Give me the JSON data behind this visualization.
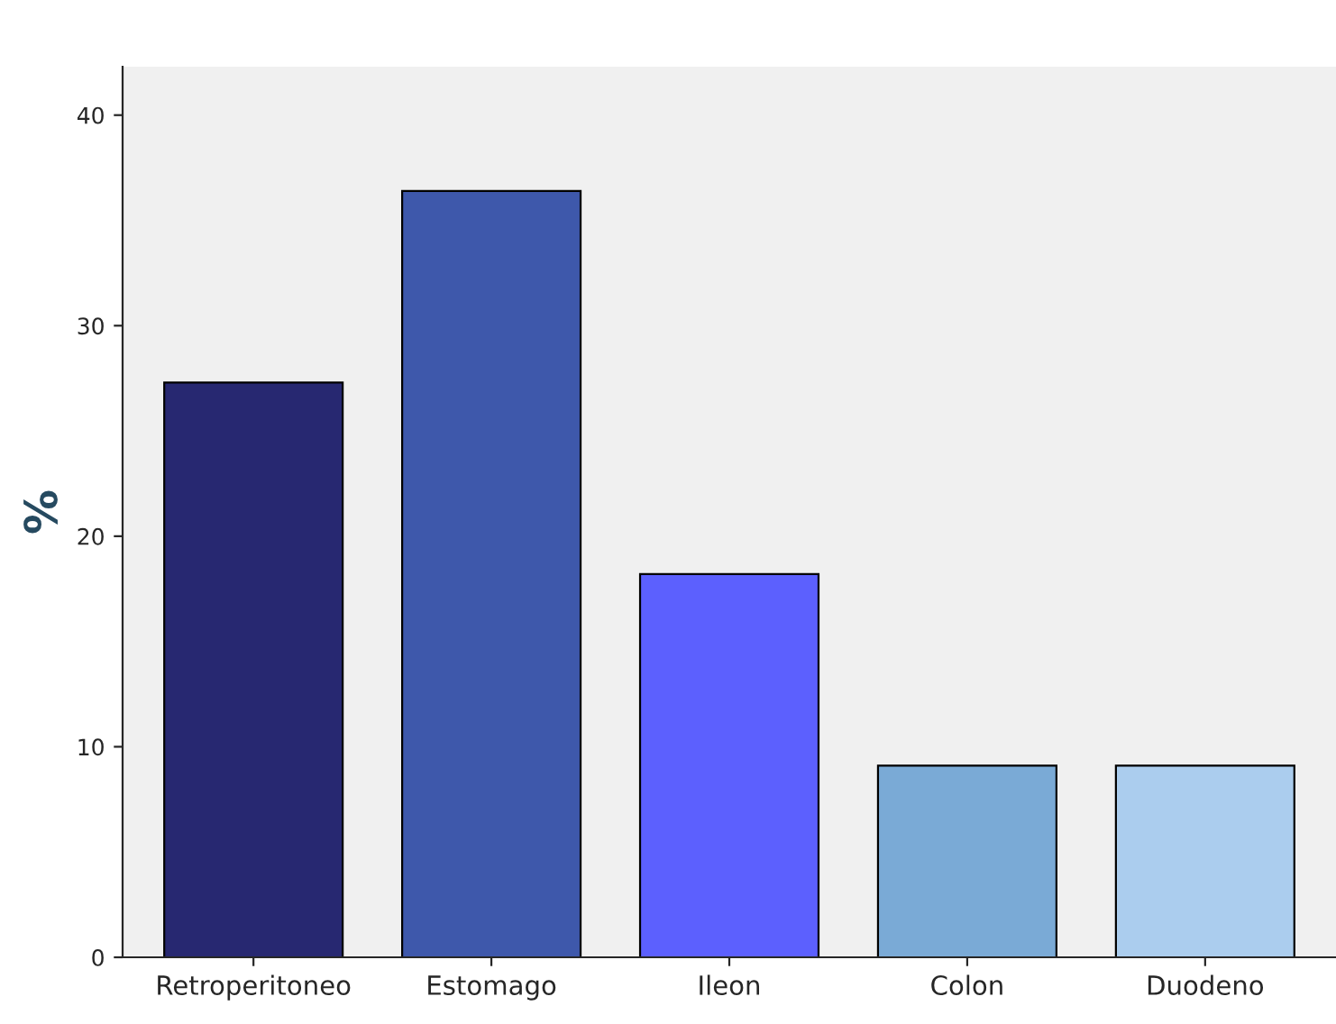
{
  "chart_data": {
    "type": "bar",
    "ylabel": "%",
    "categories": [
      "Retroperitoneo",
      "Estomago",
      "Ileon",
      "Colon",
      "Duodeno"
    ],
    "values": [
      27.3,
      36.4,
      18.2,
      9.1,
      9.1
    ],
    "colors": [
      "#272871",
      "#3e58ab",
      "#5c60fe",
      "#7aaad6",
      "#abcdee"
    ],
    "ylim": [
      0,
      42.3
    ],
    "yticks": [
      0,
      10,
      20,
      30,
      40
    ],
    "grid": false,
    "legend": false
  }
}
